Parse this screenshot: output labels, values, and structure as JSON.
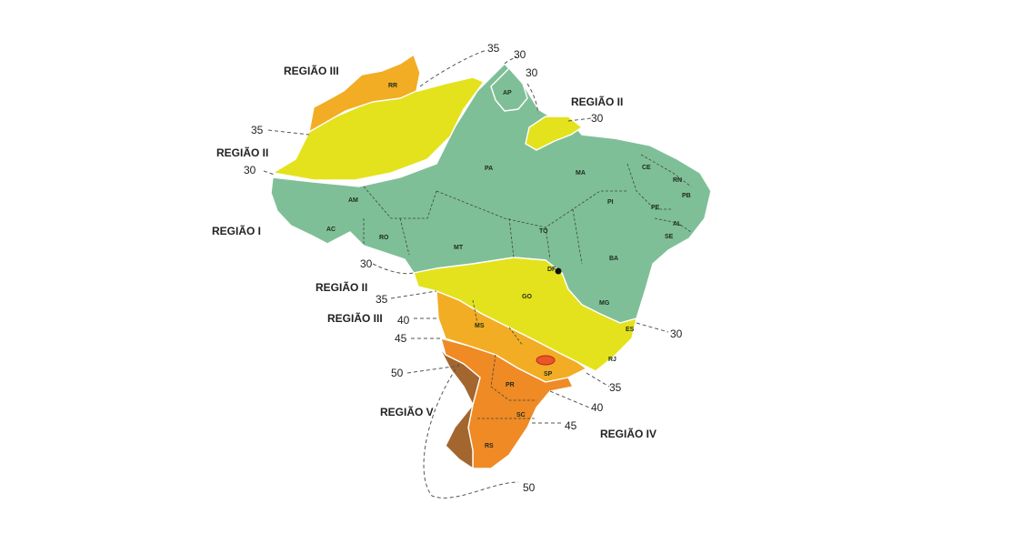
{
  "colors": {
    "zone_I": "#7fbf98",
    "zone_II": "#e4e21c",
    "zone_III": "#f2ad24",
    "zone_IV": "#ef8a25",
    "zone_V": "#a3662e"
  },
  "region_labels": {
    "r1": "REGIÃO I",
    "r2_north": "REGIÃO II",
    "r2_mid": "REGIÃO II",
    "r3_north": "REGIÃO III",
    "r3_mid": "REGIÃO III",
    "r3_east": "REGIÃO II",
    "r4": "REGIÃO IV",
    "r5": "REGIÃO V"
  },
  "isolines": {
    "n35_top": "35",
    "n30_top_a": "30",
    "n30_top_b": "30",
    "n30_east_north": "30",
    "n35_west": "35",
    "n30_west": "30",
    "n30_center_west": "30",
    "n35_center_west": "35",
    "n40_west": "40",
    "n45_west": "45",
    "n50_west": "50",
    "n30_east": "30",
    "n35_south": "35",
    "n40_south": "40",
    "n45_south": "45",
    "n50_bottom": "50"
  },
  "states": {
    "RR": "RR",
    "AP": "AP",
    "AM": "AM",
    "PA": "PA",
    "AC": "AC",
    "RO": "RO",
    "MT": "MT",
    "TO": "TO",
    "MA": "MA",
    "PI": "PI",
    "CE": "CE",
    "RN": "RN",
    "PB": "PB",
    "PE": "PE",
    "AL": "AL",
    "SE": "SE",
    "BA": "BA",
    "DF": "DF",
    "GO": "GO",
    "MG": "MG",
    "ES": "ES",
    "MS": "MS",
    "SP": "SP",
    "RJ": "RJ",
    "PR": "PR",
    "SC": "SC",
    "RS": "RS"
  }
}
